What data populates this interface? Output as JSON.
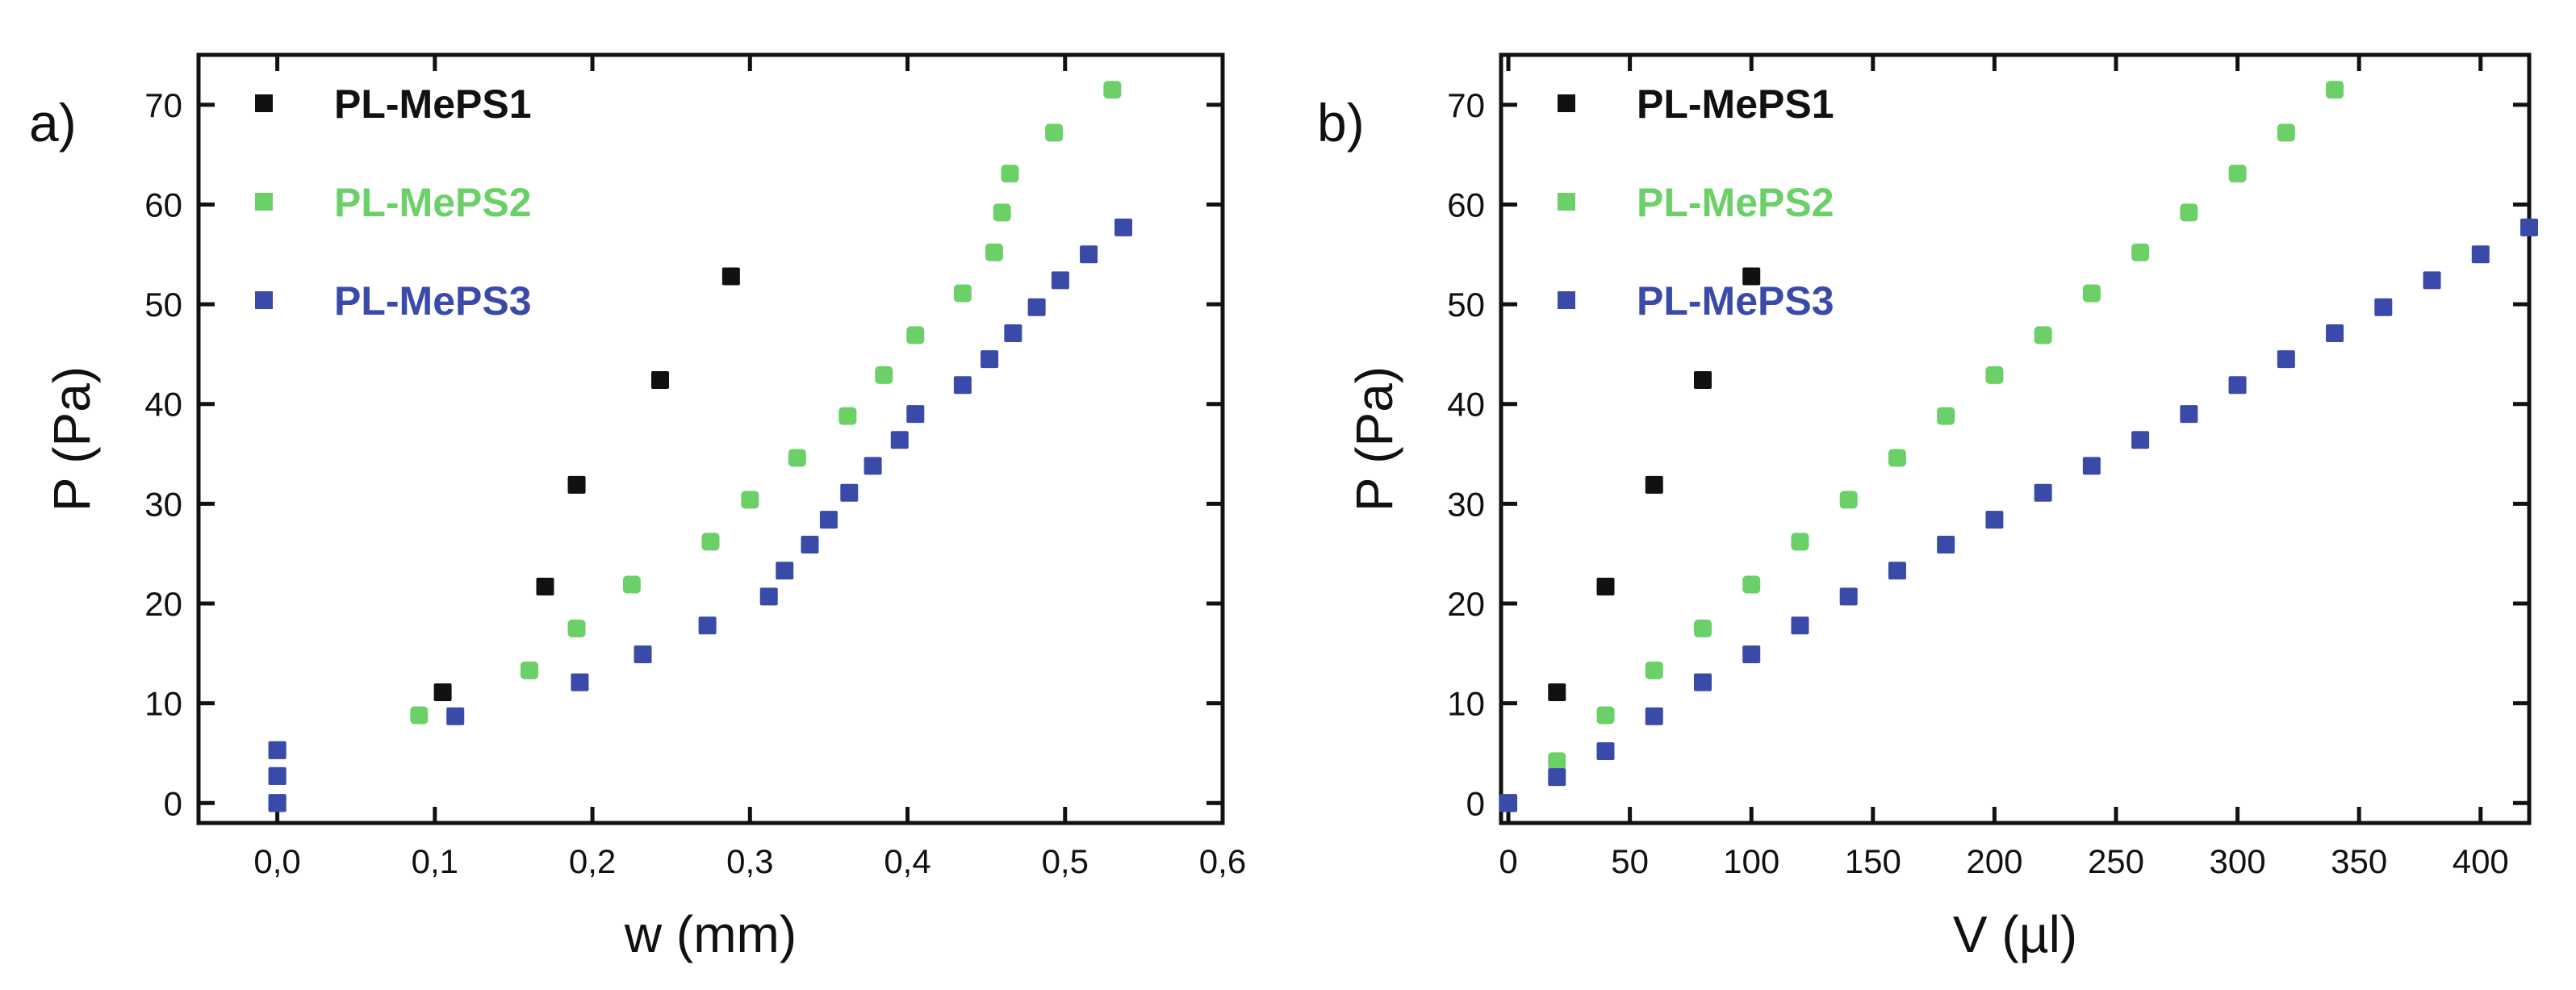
{
  "chart_data": [
    {
      "type": "scatter",
      "panel_label": "a)",
      "xlabel": "w (mm)",
      "ylabel": "P (Pa)",
      "xlim": [
        -0.05,
        0.6
      ],
      "ylim": [
        -2,
        75
      ],
      "xticks": [
        0.0,
        0.1,
        0.2,
        0.3,
        0.4,
        0.5,
        0.6
      ],
      "xtick_labels": [
        "0,0",
        "0,1",
        "0,2",
        "0,3",
        "0,4",
        "0,5",
        "0,6"
      ],
      "yticks": [
        0,
        10,
        20,
        30,
        40,
        50,
        60,
        70
      ],
      "ytick_labels": [
        "0",
        "10",
        "20",
        "30",
        "40",
        "50",
        "60",
        "70"
      ],
      "legend_position": "top-left",
      "series": [
        {
          "name": "PL-MePS1",
          "color": "#111111",
          "x": [
            0.0,
            0.0,
            0.0,
            0.105,
            0.17,
            0.19,
            0.243,
            0.288
          ],
          "y": [
            0.0,
            2.7,
            5.3,
            11.1,
            21.7,
            31.9,
            42.4,
            52.8
          ]
        },
        {
          "name": "PL-MePS2",
          "color": "#6cd068",
          "x": [
            0.0,
            0.0,
            0.0,
            0.09,
            0.16,
            0.19,
            0.225,
            0.275,
            0.3,
            0.33,
            0.362,
            0.385,
            0.405,
            0.435,
            0.455,
            0.46,
            0.465,
            0.493,
            0.53
          ],
          "y": [
            0.0,
            2.7,
            5.3,
            8.8,
            13.3,
            17.5,
            21.9,
            26.2,
            30.4,
            34.6,
            38.8,
            42.9,
            46.9,
            51.1,
            55.2,
            59.2,
            63.1,
            67.2,
            71.5
          ]
        },
        {
          "name": "PL-MePS3",
          "color": "#3a4aa8",
          "x": [
            0.0,
            0.0,
            0.0,
            0.113,
            0.192,
            0.232,
            0.273,
            0.312,
            0.322,
            0.338,
            0.35,
            0.363,
            0.378,
            0.395,
            0.405,
            0.435,
            0.452,
            0.467,
            0.482,
            0.497,
            0.515,
            0.537
          ],
          "y": [
            0.0,
            2.7,
            5.3,
            8.7,
            12.1,
            14.9,
            17.8,
            20.7,
            23.3,
            25.9,
            28.4,
            31.1,
            33.8,
            36.4,
            39.0,
            41.9,
            44.5,
            47.1,
            49.7,
            52.4,
            55.0,
            57.7
          ]
        }
      ]
    },
    {
      "type": "scatter",
      "panel_label": "b)",
      "xlabel": "V (µl)",
      "ylabel": "P (Pa)",
      "xlim": [
        -3,
        420
      ],
      "ylim": [
        -2,
        75
      ],
      "xticks": [
        0,
        50,
        100,
        150,
        200,
        250,
        300,
        350,
        400
      ],
      "xtick_labels": [
        "0",
        "50",
        "100",
        "150",
        "200",
        "250",
        "300",
        "350",
        "400"
      ],
      "yticks": [
        0,
        10,
        20,
        30,
        40,
        50,
        60,
        70
      ],
      "ytick_labels": [
        "0",
        "10",
        "20",
        "30",
        "40",
        "50",
        "60",
        "70"
      ],
      "legend_position": "top-left",
      "series": [
        {
          "name": "PL-MePS1",
          "color": "#111111",
          "x": [
            0,
            20,
            40,
            60,
            80,
            100
          ],
          "y": [
            0.0,
            11.1,
            21.7,
            31.9,
            42.4,
            52.8
          ]
        },
        {
          "name": "PL-MePS2",
          "color": "#6cd068",
          "x": [
            0,
            20,
            40,
            60,
            80,
            100,
            120,
            140,
            160,
            180,
            200,
            220,
            240,
            260,
            280,
            300,
            320,
            340
          ],
          "y": [
            0.0,
            4.2,
            8.8,
            13.3,
            17.5,
            21.9,
            26.2,
            30.4,
            34.6,
            38.8,
            42.9,
            46.9,
            51.1,
            55.2,
            59.2,
            63.1,
            67.2,
            71.5
          ]
        },
        {
          "name": "PL-MePS3",
          "color": "#3a4aa8",
          "x": [
            0,
            20,
            40,
            60,
            80,
            100,
            120,
            140,
            160,
            180,
            200,
            220,
            240,
            260,
            280,
            300,
            320,
            340,
            360,
            380,
            400,
            420
          ],
          "y": [
            0.0,
            2.6,
            5.2,
            8.7,
            12.1,
            14.9,
            17.8,
            20.7,
            23.3,
            25.9,
            28.4,
            31.1,
            33.8,
            36.4,
            39.0,
            41.9,
            44.5,
            47.1,
            49.7,
            52.4,
            55.0,
            57.7
          ]
        }
      ]
    }
  ]
}
